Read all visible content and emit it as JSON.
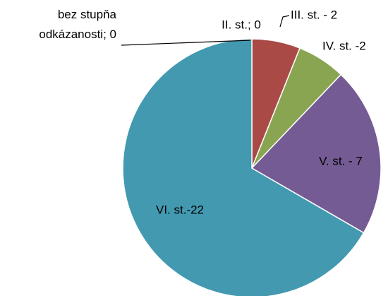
{
  "chart_data": {
    "type": "pie",
    "values": [
      0,
      0,
      2,
      2,
      7,
      22
    ],
    "value_labels": [
      "bez stupňa odkázanosti; 0",
      "II. st.; 0",
      "III. st. - 2",
      "IV. st. -2",
      "V. st. - 7",
      "VI. st.-22"
    ],
    "colors": [
      "#4f81bd",
      "#c0504d",
      "#a94a47",
      "#8aa552",
      "#745b93",
      "#4299b0"
    ]
  }
}
